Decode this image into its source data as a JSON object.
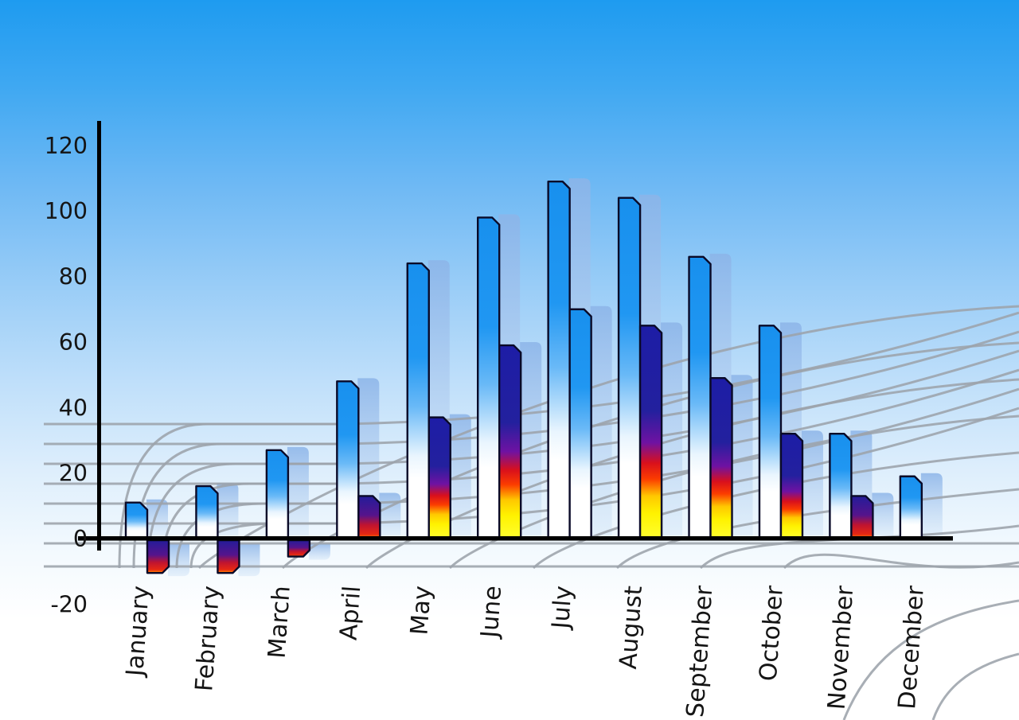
{
  "chart_data": {
    "type": "bar",
    "title": "",
    "categories": [
      "January",
      "February",
      "March",
      "April",
      "May",
      "June",
      "July",
      "August",
      "September",
      "October",
      "November",
      "December"
    ],
    "series": [
      {
        "name": "primary-blue-gradient-bars",
        "values": [
          11,
          16,
          27,
          48,
          84,
          98,
          109,
          104,
          86,
          65,
          32,
          19
        ]
      },
      {
        "name": "secondary-heat-gradient-bars",
        "values": [
          -10,
          -10,
          -5,
          13,
          37,
          59,
          70,
          65,
          49,
          32,
          13,
          null
        ]
      }
    ],
    "secondary_bar_style": [
      "heat",
      "heat",
      "heat",
      "heat",
      "heat",
      "heat",
      "blue",
      "heat",
      "heat",
      "heat",
      "heat",
      null
    ],
    "y_axis": {
      "tick_labels": [
        "120",
        "100",
        "80",
        "60",
        "40",
        "20",
        "0",
        "-20"
      ],
      "tick_values": [
        120,
        100,
        80,
        60,
        40,
        20,
        0,
        -20
      ],
      "min": -20,
      "max": 120
    },
    "x_axis": {
      "label_rotation_deg": -86
    },
    "legend_position": "none",
    "gridlines": "decorative-perspective-floor-grid",
    "colors": {
      "sky_top": "#1E9BF0",
      "sky_bottom": "#FFFFFF",
      "bar_blue_top": "#1890EE",
      "bar_blue_bottom": "#FFFFFF",
      "heat_navy": "#1D1DA6",
      "heat_red": "#D9101C",
      "heat_orange": "#FB3C00",
      "heat_yellow": "#FFF200",
      "echo_blue": "#8CB4E8",
      "grid_line": "#9CA3AB",
      "axis": "#000000",
      "label_text": "#151515",
      "bar_outline": "#0A0A28"
    }
  }
}
